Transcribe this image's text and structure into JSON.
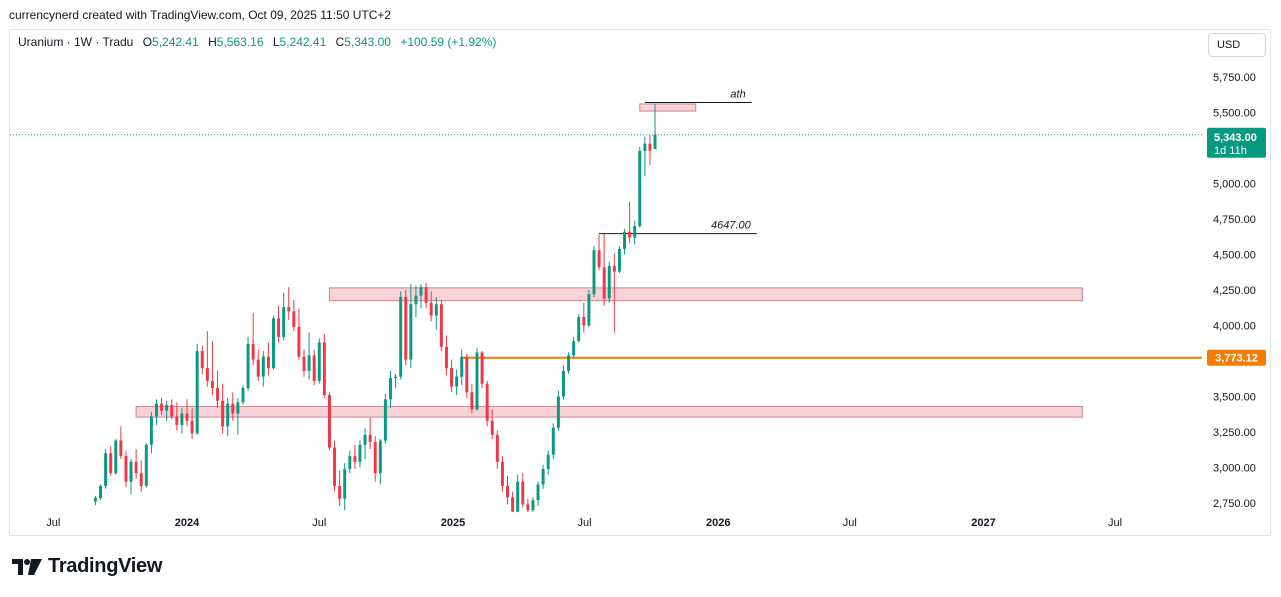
{
  "header": {
    "attribution": "currencynerd created with TradingView.com, Oct 09, 2025 11:50 UTC+2"
  },
  "legend": {
    "symbol": "Uranium · 1W · Tradu",
    "o_label": "O",
    "o_value": "5,242.41",
    "h_label": "H",
    "h_value": "5,563.16",
    "l_label": "L",
    "l_value": "5,242.41",
    "c_label": "C",
    "c_value": "5,343.00",
    "change": "+100.59 (+1.92%)"
  },
  "currency_button": "USD",
  "footer": {
    "brand": "TradingView"
  },
  "colors": {
    "up": "#089981",
    "down": "#f23645",
    "zone_fill": "#f8d3d6",
    "zone_stroke": "#c9878e",
    "orange": "#f57c00"
  },
  "chart_data": {
    "type": "candlestick",
    "title": "Uranium · 1W · Tradu",
    "ylim": [
      2700,
      5900
    ],
    "y_ticks": [
      2750,
      3000,
      3250,
      3500,
      3750,
      4000,
      4250,
      4500,
      4750,
      5000,
      5250,
      5500,
      5750
    ],
    "y_tick_labels": [
      "2,750.00",
      "3,000.00",
      "3,250.00",
      "3,500.00",
      "",
      "4,000.00",
      "4,250.00",
      "4,500.00",
      "4,750.00",
      "5,000.00",
      "",
      "5,500.00",
      "5,750.00"
    ],
    "x_labels": [
      {
        "date": "2023-07-01",
        "text": "Jul",
        "bold": false
      },
      {
        "date": "2024-01-01",
        "text": "2024",
        "bold": true
      },
      {
        "date": "2024-07-01",
        "text": "Jul",
        "bold": false
      },
      {
        "date": "2025-01-01",
        "text": "2025",
        "bold": true
      },
      {
        "date": "2025-07-01",
        "text": "Jul",
        "bold": false
      },
      {
        "date": "2026-01-01",
        "text": "2026",
        "bold": true
      },
      {
        "date": "2026-07-01",
        "text": "Jul",
        "bold": false
      },
      {
        "date": "2027-01-01",
        "text": "2027",
        "bold": true
      },
      {
        "date": "2027-07-01",
        "text": "Jul",
        "bold": false
      }
    ],
    "first_candle_date": "2023-08-28",
    "candles": [
      [
        2760,
        2800,
        2735,
        2785
      ],
      [
        2785,
        2880,
        2770,
        2870
      ],
      [
        2870,
        3130,
        2850,
        3100
      ],
      [
        3100,
        3150,
        2940,
        2960
      ],
      [
        2960,
        3200,
        2950,
        3190
      ],
      [
        3190,
        3290,
        3060,
        3080
      ],
      [
        3080,
        3120,
        2860,
        2900
      ],
      [
        2900,
        3060,
        2810,
        3040
      ],
      [
        3040,
        3130,
        2920,
        2960
      ],
      [
        2960,
        3050,
        2830,
        2870
      ],
      [
        2870,
        3170,
        2860,
        3160
      ],
      [
        3160,
        3390,
        3100,
        3360
      ],
      [
        3360,
        3480,
        3300,
        3450
      ],
      [
        3450,
        3490,
        3370,
        3400
      ],
      [
        3400,
        3470,
        3330,
        3440
      ],
      [
        3440,
        3480,
        3340,
        3360
      ],
      [
        3360,
        3460,
        3260,
        3300
      ],
      [
        3300,
        3420,
        3240,
        3380
      ],
      [
        3380,
        3480,
        3290,
        3330
      ],
      [
        3330,
        3420,
        3200,
        3240
      ],
      [
        3240,
        3870,
        3230,
        3820
      ],
      [
        3820,
        3860,
        3660,
        3700
      ],
      [
        3700,
        3960,
        3570,
        3610
      ],
      [
        3610,
        3890,
        3510,
        3560
      ],
      [
        3560,
        3680,
        3420,
        3470
      ],
      [
        3470,
        3590,
        3240,
        3290
      ],
      [
        3290,
        3490,
        3220,
        3450
      ],
      [
        3450,
        3530,
        3330,
        3380
      ],
      [
        3380,
        3490,
        3230,
        3460
      ],
      [
        3460,
        3580,
        3440,
        3560
      ],
      [
        3560,
        3920,
        3540,
        3870
      ],
      [
        3870,
        4090,
        3720,
        3760
      ],
      [
        3760,
        3830,
        3610,
        3640
      ],
      [
        3640,
        3820,
        3570,
        3780
      ],
      [
        3780,
        3880,
        3650,
        3700
      ],
      [
        3700,
        4070,
        3690,
        4050
      ],
      [
        4050,
        4140,
        3880,
        3920
      ],
      [
        3920,
        4230,
        3900,
        4130
      ],
      [
        4130,
        4270,
        4040,
        4100
      ],
      [
        4100,
        4180,
        3960,
        3990
      ],
      [
        3990,
        4120,
        3760,
        3780
      ],
      [
        3780,
        3830,
        3640,
        3680
      ],
      [
        3680,
        3950,
        3620,
        3790
      ],
      [
        3790,
        3830,
        3580,
        3610
      ],
      [
        3610,
        3910,
        3590,
        3880
      ],
      [
        3880,
        3940,
        3490,
        3510
      ],
      [
        3510,
        3530,
        3120,
        3140
      ],
      [
        3140,
        3190,
        2830,
        2870
      ],
      [
        2870,
        2980,
        2730,
        2780
      ],
      [
        2780,
        3030,
        2700,
        2990
      ],
      [
        2990,
        3120,
        2960,
        3080
      ],
      [
        3080,
        3160,
        2990,
        3040
      ],
      [
        3040,
        3190,
        3000,
        3160
      ],
      [
        3160,
        3280,
        3060,
        3230
      ],
      [
        3230,
        3350,
        3130,
        3180
      ],
      [
        3180,
        3220,
        2900,
        2960
      ],
      [
        2960,
        3200,
        2880,
        3190
      ],
      [
        3190,
        3520,
        3170,
        3480
      ],
      [
        3480,
        3680,
        3420,
        3630
      ],
      [
        3630,
        3660,
        3560,
        3640
      ],
      [
        3640,
        4240,
        3620,
        4200
      ],
      [
        4200,
        4250,
        3720,
        3760
      ],
      [
        3760,
        4290,
        3700,
        4150
      ],
      [
        4150,
        4280,
        4060,
        4210
      ],
      [
        4210,
        4290,
        4120,
        4270
      ],
      [
        4270,
        4300,
        4120,
        4160
      ],
      [
        4160,
        4240,
        4030,
        4070
      ],
      [
        4070,
        4200,
        3970,
        4150
      ],
      [
        4150,
        4180,
        3820,
        3850
      ],
      [
        3850,
        3930,
        3650,
        3700
      ],
      [
        3700,
        3760,
        3530,
        3570
      ],
      [
        3570,
        3690,
        3510,
        3640
      ],
      [
        3640,
        3830,
        3580,
        3780
      ],
      [
        3780,
        3800,
        3490,
        3530
      ],
      [
        3530,
        3590,
        3380,
        3410
      ],
      [
        3410,
        3840,
        3400,
        3810
      ],
      [
        3810,
        3820,
        3560,
        3590
      ],
      [
        3590,
        3610,
        3290,
        3330
      ],
      [
        3330,
        3410,
        3200,
        3230
      ],
      [
        3230,
        3260,
        2990,
        3040
      ],
      [
        3040,
        3080,
        2830,
        2870
      ],
      [
        2870,
        2940,
        2740,
        2790
      ],
      [
        2790,
        2830,
        2660,
        2690
      ],
      [
        2690,
        2950,
        2660,
        2900
      ],
      [
        2900,
        2960,
        2720,
        2740
      ],
      [
        2740,
        2780,
        2650,
        2700
      ],
      [
        2700,
        2790,
        2660,
        2770
      ],
      [
        2770,
        2900,
        2730,
        2880
      ],
      [
        2880,
        3020,
        2850,
        2990
      ],
      [
        2990,
        3120,
        2950,
        3090
      ],
      [
        3090,
        3310,
        3060,
        3280
      ],
      [
        3280,
        3540,
        3260,
        3500
      ],
      [
        3500,
        3720,
        3480,
        3680
      ],
      [
        3680,
        3810,
        3660,
        3790
      ],
      [
        3790,
        3920,
        3770,
        3890
      ],
      [
        3890,
        4080,
        3880,
        4060
      ],
      [
        4060,
        4160,
        3950,
        4000
      ],
      [
        4000,
        4250,
        3990,
        4220
      ],
      [
        4220,
        4560,
        4200,
        4530
      ],
      [
        4530,
        4640,
        4390,
        4410
      ],
      [
        4410,
        4650,
        4140,
        4190
      ],
      [
        4190,
        4450,
        4160,
        4420
      ],
      [
        4420,
        4510,
        3950,
        4380
      ],
      [
        4380,
        4560,
        4370,
        4540
      ],
      [
        4540,
        4680,
        4500,
        4660
      ],
      [
        4660,
        4870,
        4580,
        4620
      ],
      [
        4620,
        4740,
        4570,
        4700
      ],
      [
        4700,
        5260,
        4690,
        5230
      ],
      [
        5230,
        5330,
        5050,
        5280
      ],
      [
        5280,
        5340,
        5130,
        5230
      ],
      [
        5242.41,
        5563.16,
        5242.41,
        5343.0
      ]
    ],
    "zones": [
      {
        "label": "ath",
        "top": 5560,
        "bottom": 5510,
        "start_idx": 107,
        "end_idx": 118
      },
      {
        "label": "",
        "top": 4265,
        "bottom": 4175,
        "start_idx": 46,
        "end_idx": 194
      },
      {
        "label": "",
        "top": 3430,
        "bottom": 3355,
        "start_idx": 8,
        "end_idx": 194
      }
    ],
    "levels": [
      {
        "label": "ath",
        "value": 5570,
        "start_idx": 108,
        "end_idx": 129
      },
      {
        "label": "4647.00",
        "value": 4647,
        "start_idx": 99,
        "end_idx": 130
      }
    ],
    "horizontal_line": {
      "value": 3773.12,
      "label": "3,773.12",
      "start_idx": 72,
      "color": "#f57c00"
    },
    "last_price": {
      "value": 5343.0,
      "label": "5,343.00",
      "sublabel": "1d 11h"
    }
  }
}
